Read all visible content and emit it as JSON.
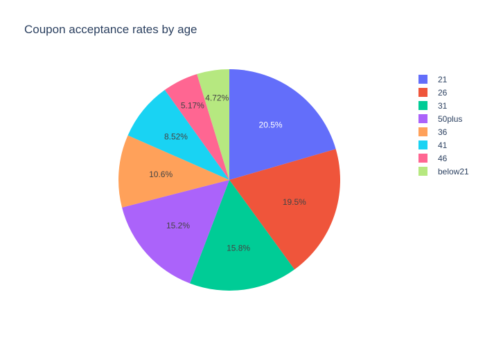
{
  "title": "Coupon acceptance rates by age",
  "chart_data": {
    "type": "pie",
    "title": "Coupon acceptance rates by age",
    "labels": [
      "21",
      "26",
      "31",
      "50plus",
      "36",
      "41",
      "46",
      "below21"
    ],
    "values": [
      20.5,
      19.5,
      15.8,
      15.2,
      10.6,
      8.52,
      5.17,
      4.72
    ],
    "value_labels": [
      "20.5%",
      "19.5%",
      "15.8%",
      "15.2%",
      "10.6%",
      "8.52%",
      "5.17%",
      "4.72%"
    ],
    "direction": "clockwise",
    "start_angle": "12 o'clock",
    "legend_placement": "right",
    "colors": [
      "#636efa",
      "#EF553B",
      "#00cc96",
      "#ab63fa",
      "#FFA15A",
      "#19d3f3",
      "#FF6692",
      "#B6E880"
    ],
    "label_colors": [
      "#ffffff",
      "#444444",
      "#444444",
      "#444444",
      "#444444",
      "#444444",
      "#444444",
      "#444444"
    ]
  }
}
